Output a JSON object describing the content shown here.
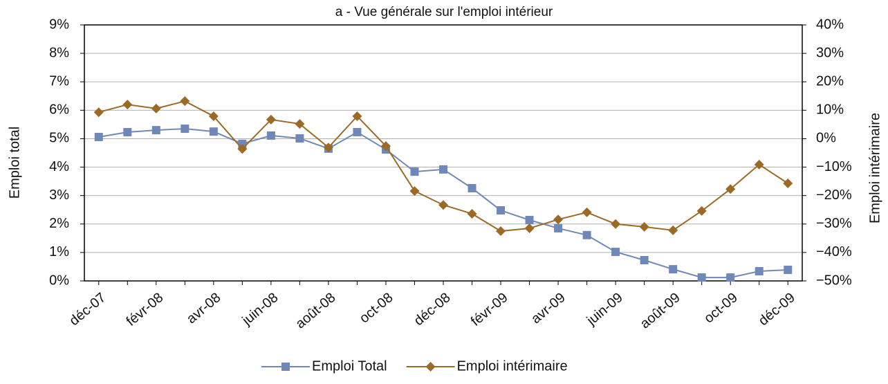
{
  "chart_data": {
    "type": "line",
    "title": "a - Vue générale sur l'emploi intérieur",
    "y_label": "Emploi total",
    "y2_label": "Emploi intérimaire",
    "categories": [
      "déc-07",
      null,
      "févr-08",
      null,
      "avr-08",
      null,
      "juin-08",
      null,
      "août-08",
      null,
      "oct-08",
      null,
      "déc-08",
      null,
      "févr-09",
      null,
      "avr-09",
      null,
      "juin-09",
      null,
      "août-09",
      null,
      "oct-09",
      null,
      "déc-09"
    ],
    "ylim": [
      0,
      9
    ],
    "yticks": [
      {
        "value": 0,
        "label": "0%"
      },
      {
        "value": 1,
        "label": "1%"
      },
      {
        "value": 2,
        "label": "2%"
      },
      {
        "value": 3,
        "label": "3%"
      },
      {
        "value": 4,
        "label": "4%"
      },
      {
        "value": 5,
        "label": "5%"
      },
      {
        "value": 6,
        "label": "6%"
      },
      {
        "value": 7,
        "label": "7%"
      },
      {
        "value": 8,
        "label": "8%"
      },
      {
        "value": 9,
        "label": "9%"
      }
    ],
    "y2lim": [
      -50,
      40
    ],
    "y2ticks": [
      {
        "value": -50,
        "label": "−50%"
      },
      {
        "value": -40,
        "label": "−40%"
      },
      {
        "value": -30,
        "label": "−30%"
      },
      {
        "value": -20,
        "label": "−20%"
      },
      {
        "value": -10,
        "label": "−10%"
      },
      {
        "value": 0,
        "label": "0%"
      },
      {
        "value": 10,
        "label": "10%"
      },
      {
        "value": 20,
        "label": "20%"
      },
      {
        "value": 30,
        "label": "30%"
      },
      {
        "value": 40,
        "label": "40%"
      }
    ],
    "grid": true,
    "legend": "bottom",
    "series": [
      {
        "name": "Emploi Total",
        "color": "#6f88b8",
        "marker": "square",
        "values": [
          5.06,
          5.23,
          5.3,
          5.35,
          5.25,
          4.82,
          5.11,
          5.01,
          4.65,
          5.23,
          4.62,
          3.84,
          3.92,
          3.26,
          2.48,
          2.14,
          1.85,
          1.61,
          1.02,
          0.73,
          0.41,
          0.12,
          0.12,
          0.34,
          0.39
        ]
      },
      {
        "name": "Emploi intérimaire",
        "color": "#9c6a27",
        "marker": "diamond",
        "axis": "y2",
        "values": [
          9.3,
          12.0,
          10.6,
          13.2,
          7.9,
          -3.6,
          6.7,
          5.2,
          -3.1,
          7.9,
          -2.6,
          -18.4,
          -23.3,
          -26.4,
          -32.5,
          -31.5,
          -28.4,
          -25.9,
          -30.0,
          -31.0,
          -32.2,
          -25.4,
          -17.7,
          -9.1,
          -15.7
        ]
      }
    ]
  }
}
